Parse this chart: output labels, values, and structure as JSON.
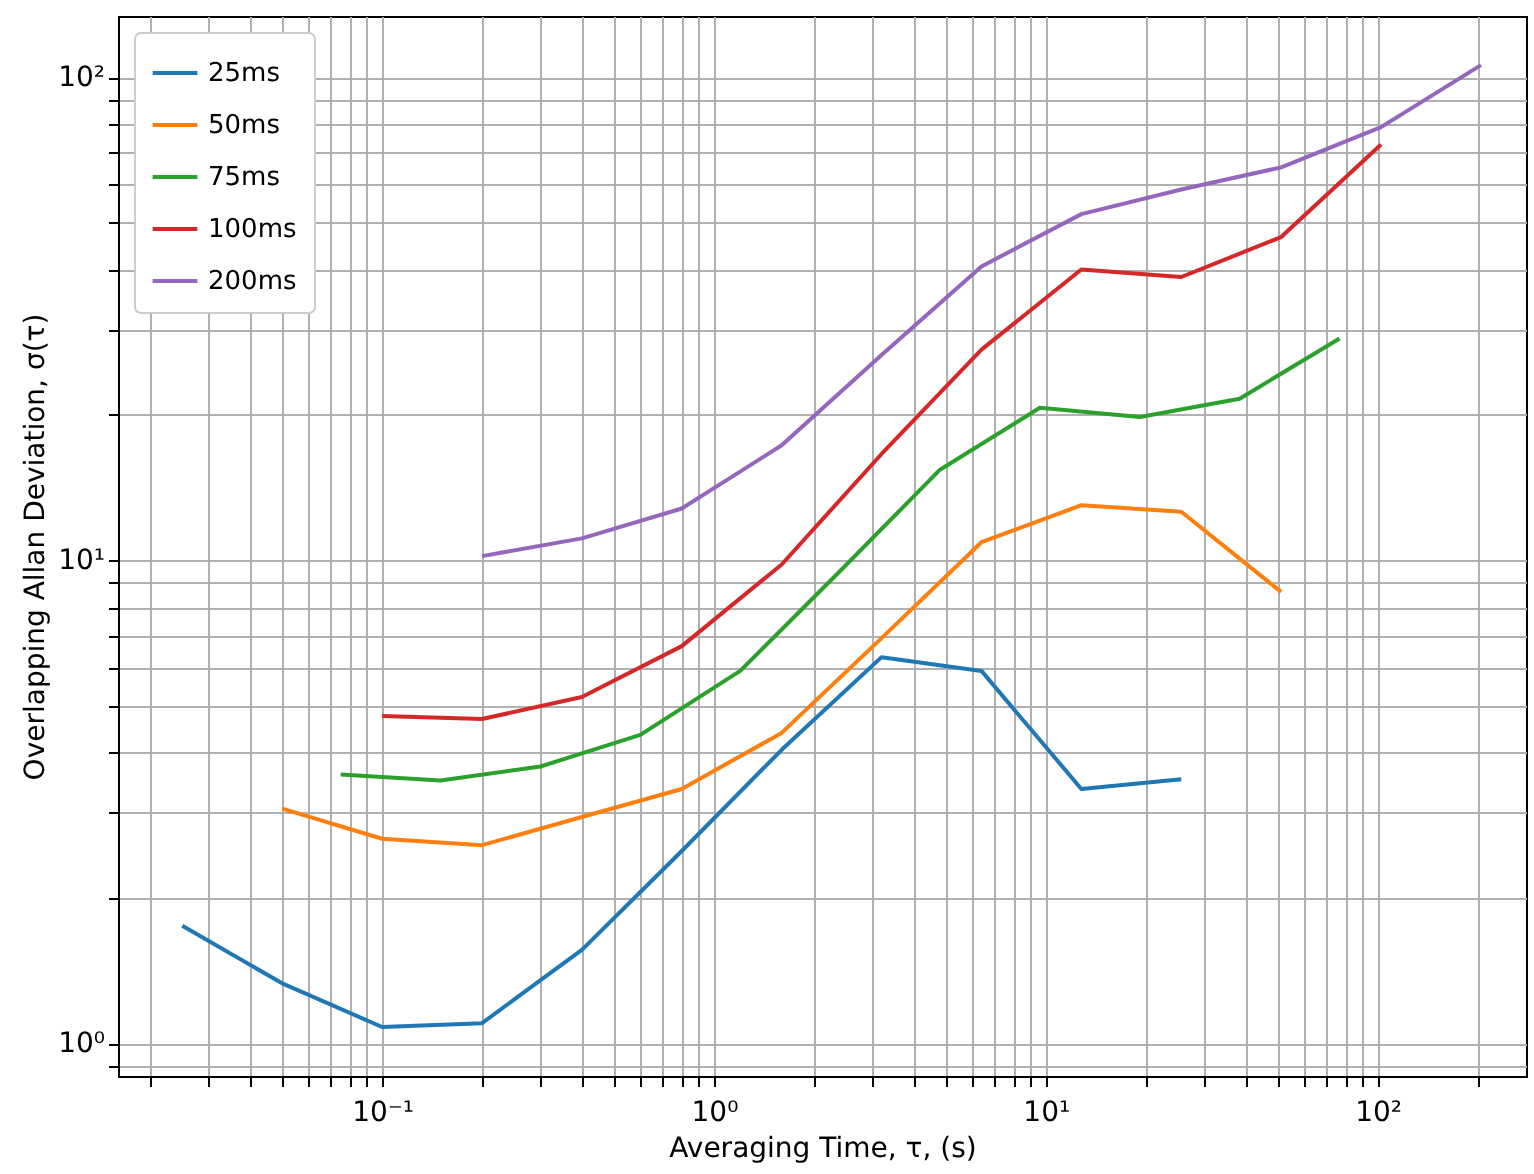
{
  "chart_data": {
    "type": "line",
    "xlabel": "Averaging Time, τ, (s)",
    "ylabel": "Overlapping Allan Deviation, σ(τ)",
    "log": "xy",
    "grid": true,
    "legend": "top left",
    "line_style": "solid",
    "marker": "none",
    "xlim": [
      0.016,
      280
    ],
    "ylim": [
      0.855,
      134
    ],
    "xticks": [
      {
        "value": 0.02,
        "label": null
      },
      {
        "value": 0.03,
        "label": null
      },
      {
        "value": 0.04,
        "label": null
      },
      {
        "value": 0.05,
        "label": null
      },
      {
        "value": 0.06,
        "label": null
      },
      {
        "value": 0.07,
        "label": null
      },
      {
        "value": 0.08,
        "label": null
      },
      {
        "value": 0.09,
        "label": null
      },
      {
        "value": 0.1,
        "label": "10⁻¹"
      },
      {
        "value": 0.2,
        "label": null
      },
      {
        "value": 0.3,
        "label": null
      },
      {
        "value": 0.4,
        "label": null
      },
      {
        "value": 0.5,
        "label": null
      },
      {
        "value": 0.6,
        "label": null
      },
      {
        "value": 0.7,
        "label": null
      },
      {
        "value": 0.8,
        "label": null
      },
      {
        "value": 0.9,
        "label": null
      },
      {
        "value": 1,
        "label": "10⁰"
      },
      {
        "value": 2,
        "label": null
      },
      {
        "value": 3,
        "label": null
      },
      {
        "value": 4,
        "label": null
      },
      {
        "value": 5,
        "label": null
      },
      {
        "value": 6,
        "label": null
      },
      {
        "value": 7,
        "label": null
      },
      {
        "value": 8,
        "label": null
      },
      {
        "value": 9,
        "label": null
      },
      {
        "value": 10,
        "label": "10¹"
      },
      {
        "value": 20,
        "label": null
      },
      {
        "value": 30,
        "label": null
      },
      {
        "value": 40,
        "label": null
      },
      {
        "value": 50,
        "label": null
      },
      {
        "value": 60,
        "label": null
      },
      {
        "value": 70,
        "label": null
      },
      {
        "value": 80,
        "label": null
      },
      {
        "value": 90,
        "label": null
      },
      {
        "value": 100,
        "label": "10²"
      },
      {
        "value": 200,
        "label": null
      }
    ],
    "yticks": [
      {
        "value": 0.9,
        "label": null
      },
      {
        "value": 1,
        "label": "10⁰"
      },
      {
        "value": 2,
        "label": null
      },
      {
        "value": 3,
        "label": null
      },
      {
        "value": 4,
        "label": null
      },
      {
        "value": 5,
        "label": null
      },
      {
        "value": 6,
        "label": null
      },
      {
        "value": 7,
        "label": null
      },
      {
        "value": 8,
        "label": null
      },
      {
        "value": 9,
        "label": null
      },
      {
        "value": 10,
        "label": "10¹"
      },
      {
        "value": 20,
        "label": null
      },
      {
        "value": 30,
        "label": null
      },
      {
        "value": 40,
        "label": null
      },
      {
        "value": 50,
        "label": null
      },
      {
        "value": 60,
        "label": null
      },
      {
        "value": 70,
        "label": null
      },
      {
        "value": 80,
        "label": null
      },
      {
        "value": 90,
        "label": null
      },
      {
        "value": 100,
        "label": "10²"
      }
    ],
    "series": [
      {
        "name": "25ms",
        "color": "#1f77b4",
        "x": [
          0.025,
          0.05,
          0.1,
          0.2,
          0.4,
          0.8,
          1.6,
          3.2,
          6.4,
          12.8,
          25.6
        ],
        "values": [
          1.75,
          1.33,
          1.08,
          1.1,
          1.56,
          2.5,
          4.05,
          6.3,
          5.9,
          3.36,
          3.52
        ]
      },
      {
        "name": "50ms",
        "color": "#ff7f0e",
        "x": [
          0.05,
          0.1,
          0.2,
          0.4,
          0.8,
          1.6,
          3.2,
          6.4,
          12.8,
          25.6,
          51.2
        ],
        "values": [
          3.06,
          2.65,
          2.57,
          2.94,
          3.36,
          4.39,
          6.9,
          10.9,
          13.0,
          12.6,
          8.6
        ]
      },
      {
        "name": "75ms",
        "color": "#2ca02c",
        "x": [
          0.075,
          0.15,
          0.3,
          0.6,
          1.2,
          2.4,
          4.8,
          9.6,
          19.2,
          38.4,
          76.8
        ],
        "values": [
          3.6,
          3.5,
          3.74,
          4.35,
          5.9,
          9.5,
          15.4,
          20.7,
          19.8,
          21.6,
          28.8
        ]
      },
      {
        "name": "100ms",
        "color": "#d62728",
        "x": [
          0.1,
          0.2,
          0.4,
          0.8,
          1.6,
          3.2,
          6.4,
          12.8,
          25.6,
          51.2,
          102.4
        ],
        "values": [
          4.76,
          4.69,
          5.21,
          6.64,
          9.8,
          16.6,
          27.3,
          40,
          38.6,
          46.7,
          72.6
        ]
      },
      {
        "name": "200ms",
        "color": "#9467bd",
        "x": [
          0.2,
          0.4,
          0.8,
          1.6,
          3.2,
          6.4,
          12.8,
          25.6,
          51.2,
          102.4,
          204.8
        ],
        "values": [
          10.2,
          11.1,
          12.8,
          17.3,
          26.6,
          40.6,
          52.1,
          58.6,
          65.1,
          78.9,
          106
        ]
      }
    ]
  }
}
